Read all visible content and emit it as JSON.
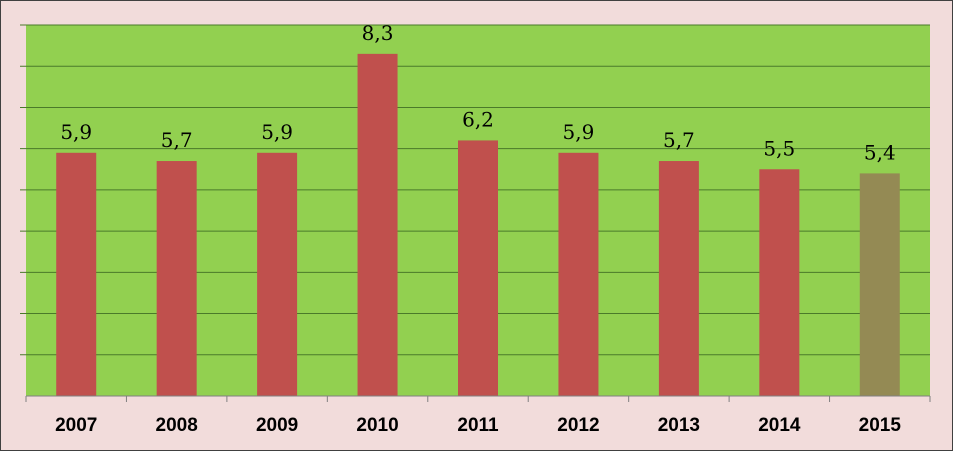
{
  "chart_data": {
    "type": "bar",
    "categories": [
      "2007",
      "2008",
      "2009",
      "2010",
      "2011",
      "2012",
      "2013",
      "2014",
      "2015"
    ],
    "values": [
      5.9,
      5.7,
      5.9,
      8.3,
      6.2,
      5.9,
      5.7,
      5.5,
      5.4
    ],
    "data_labels": [
      "5,9",
      "5,7",
      "5,9",
      "8,3",
      "6,2",
      "5,9",
      "5,7",
      "5,5",
      "5,4"
    ],
    "title": "",
    "xlabel": "",
    "ylabel": "",
    "ylim": [
      0,
      9
    ],
    "grid": true,
    "legend": "none",
    "colors": {
      "plot_background": "#92d050",
      "outer_background": "#f2dcdb",
      "bar": "#c0504d",
      "bar_highlight": "#948a54",
      "gridline": "#4a7a2a"
    },
    "highlight_category": "2015"
  }
}
